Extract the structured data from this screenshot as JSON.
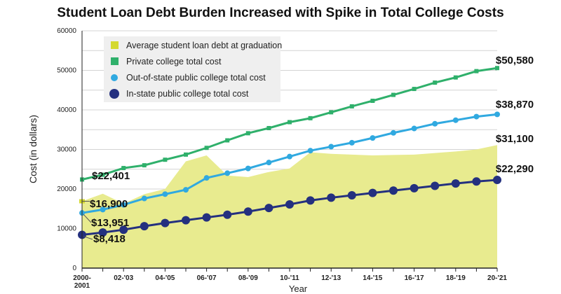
{
  "chart_data": {
    "type": "line",
    "title": "Student Loan Debt Burden Increased with Spike in Total College Costs",
    "xlabel": "Year",
    "ylabel": "Cost (in dollars)",
    "ylim": [
      0,
      60000
    ],
    "yticks": [
      0,
      10000,
      20000,
      30000,
      40000,
      50000,
      60000
    ],
    "grid": true,
    "legend_position": "top-left",
    "x": [
      "2000-2001",
      "01-'02",
      "02-'03",
      "03-'04",
      "04-'05",
      "05-'06",
      "06-'07",
      "07-'08",
      "08-'09",
      "09-'10",
      "10-'11",
      "11-'12",
      "12-'13",
      "13-'14",
      "14-'15",
      "15-'16",
      "16-'17",
      "17-'18",
      "18-'19",
      "19-'20",
      "20-'21"
    ],
    "xtick_labels": [
      "2000-2001",
      "02-'03",
      "04-'05",
      "06-'07",
      "08-'09",
      "10-'11",
      "12-'13",
      "14-'15",
      "16-'17",
      "18-'19",
      "20-'21"
    ],
    "series": [
      {
        "name": "Average student loan debt at graduation",
        "kind": "area",
        "color": "#e8eb8f",
        "marker_color": "#d4d930",
        "values": [
          16900,
          18800,
          16300,
          18700,
          20000,
          27000,
          28500,
          23400,
          23000,
          24300,
          25200,
          29300,
          28900,
          28700,
          28500,
          28600,
          28700,
          29100,
          29500,
          30000,
          31100
        ],
        "start_label": "$16,900",
        "end_label": "$31,100"
      },
      {
        "name": "Private college total cost",
        "kind": "line",
        "color": "#2fb06b",
        "values": [
          22401,
          23600,
          25300,
          26000,
          27400,
          28700,
          30400,
          32300,
          34100,
          35400,
          36900,
          37900,
          39400,
          40900,
          42300,
          43800,
          45300,
          46900,
          48200,
          49800,
          50580
        ],
        "start_label": "$22,401",
        "end_label": "$50,580"
      },
      {
        "name": "Out-of-state public college total cost",
        "kind": "line",
        "color": "#30a9e0",
        "values": [
          13951,
          14800,
          16000,
          17600,
          18700,
          19800,
          22800,
          24000,
          25200,
          26700,
          28200,
          29700,
          30700,
          31700,
          32900,
          34200,
          35300,
          36500,
          37400,
          38300,
          38870
        ],
        "start_label": "$13,951",
        "end_label": "$38,870"
      },
      {
        "name": "In-state public college total cost",
        "kind": "line",
        "color": "#24307f",
        "values": [
          8418,
          9000,
          9700,
          10600,
          11400,
          12100,
          12800,
          13500,
          14300,
          15200,
          16100,
          17100,
          17800,
          18400,
          19000,
          19600,
          20200,
          20800,
          21400,
          21900,
          22290
        ],
        "start_label": "$8,418",
        "end_label": "$22,290"
      }
    ]
  }
}
